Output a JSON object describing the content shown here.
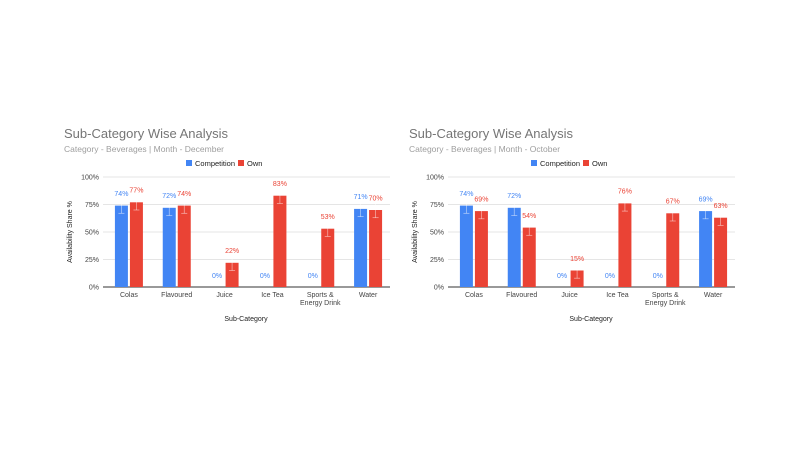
{
  "chart_data": [
    {
      "type": "bar",
      "title": "Sub-Category Wise Analysis",
      "subtitle": "Category - Beverages | Month - December",
      "xlabel": "Sub-Category",
      "ylabel": "Availability Share %",
      "ylim": [
        0,
        100
      ],
      "yticks": [
        "0%",
        "25%",
        "50%",
        "75%",
        "100%"
      ],
      "grid": true,
      "legend_position": "top",
      "categories": [
        "Colas",
        "Flavoured",
        "Juice",
        "Ice Tea",
        "Sports & Energy Drink",
        "Water"
      ],
      "series": [
        {
          "name": "Competition",
          "color": "#4285f4",
          "values": [
            74,
            72,
            0,
            0,
            0,
            71
          ],
          "labels": [
            "74%",
            "72%",
            "0%",
            "0%",
            "0%",
            "71%"
          ]
        },
        {
          "name": "Own",
          "color": "#ea4335",
          "values": [
            77,
            74,
            22,
            83,
            53,
            70
          ],
          "labels": [
            "77%",
            "74%",
            "22%",
            "83%",
            "53%",
            "70%"
          ]
        }
      ],
      "error_bars": "±7"
    },
    {
      "type": "bar",
      "title": "Sub-Category Wise Analysis",
      "subtitle": "Category - Beverages | Month - October",
      "xlabel": "Sub-Category",
      "ylabel": "Availability Share %",
      "ylim": [
        0,
        100
      ],
      "yticks": [
        "0%",
        "25%",
        "50%",
        "75%",
        "100%"
      ],
      "grid": true,
      "legend_position": "top",
      "categories": [
        "Colas",
        "Flavoured",
        "Juice",
        "Ice Tea",
        "Sports & Energy Drink",
        "Water"
      ],
      "series": [
        {
          "name": "Competition",
          "color": "#4285f4",
          "values": [
            74,
            72,
            0,
            0,
            0,
            69
          ],
          "labels": [
            "74%",
            "72%",
            "0%",
            "0%",
            "0%",
            "69%"
          ]
        },
        {
          "name": "Own",
          "color": "#ea4335",
          "values": [
            69,
            54,
            15,
            76,
            67,
            63
          ],
          "labels": [
            "69%",
            "54%",
            "15%",
            "76%",
            "67%",
            "63%"
          ]
        }
      ],
      "error_bars": "±7"
    }
  ]
}
